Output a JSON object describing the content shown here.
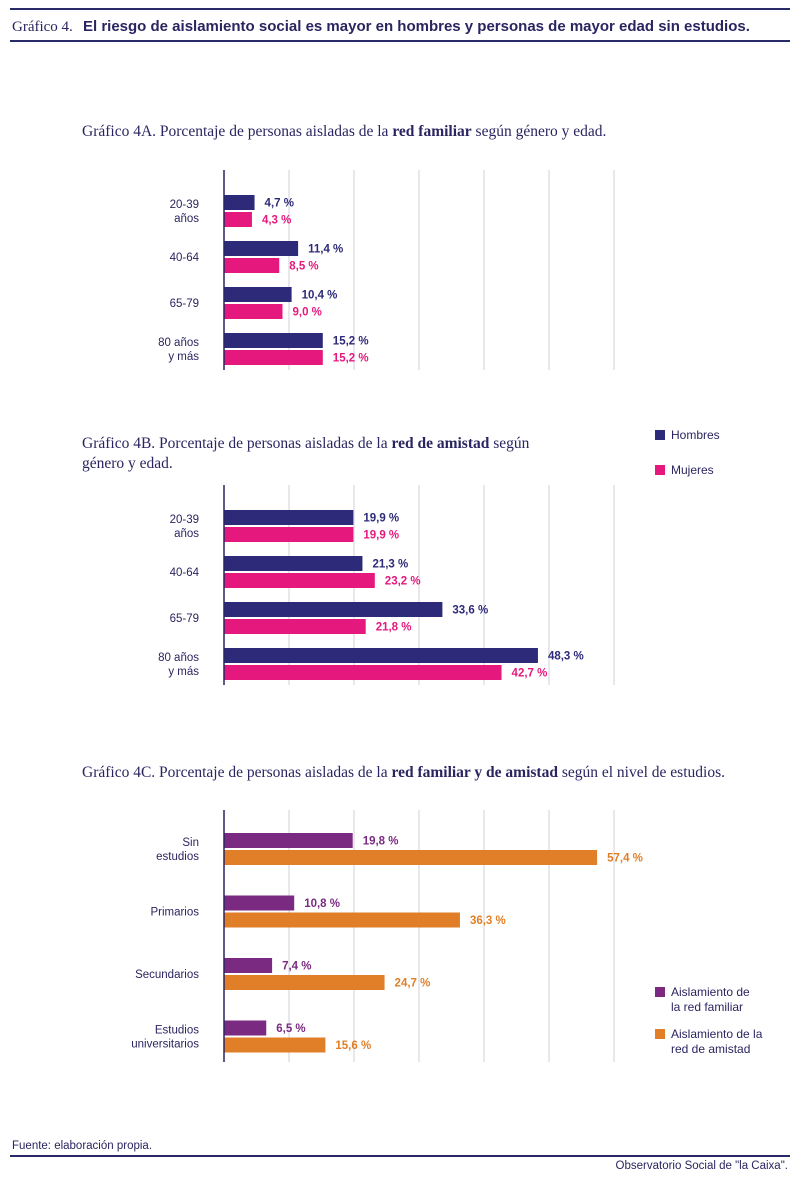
{
  "header": {
    "label": "Gráfico 4.",
    "title": "El riesgo de aislamiento social es mayor en hombres y personas de mayor edad sin estudios."
  },
  "colors": {
    "hombres": "#2e2a7a",
    "mujeres": "#e5197d",
    "familiar": "#7b2a82",
    "amistad": "#e07f28",
    "grid": "#cfcfd8",
    "axis": "#2a2560",
    "rule": "#2a2a6a"
  },
  "chartA": {
    "title_prefix": "Gráfico 4A. Porcentaje de personas aisladas de la ",
    "title_bold": "red familiar",
    "title_suffix": " según género y edad."
  },
  "chartB": {
    "title_prefix": "Gráfico 4B. Porcentaje de personas aisladas de la ",
    "title_bold": "red de amistad",
    "title_suffix": " según género y edad."
  },
  "chartC": {
    "title_prefix": "Gráfico 4C. Porcentaje de personas aisladas de la ",
    "title_bold": "red familiar y de amistad",
    "title_suffix": " según el nivel de estudios."
  },
  "legend_gender": {
    "hombres": "Hombres",
    "mujeres": "Mujeres"
  },
  "legend_studies": {
    "familiar_line1": "Aislamiento de",
    "familiar_line2": "la red familiar",
    "amistad_line1": "Aislamiento de la",
    "amistad_line2": "red de amistad"
  },
  "chart_data": [
    {
      "id": "4A",
      "type": "bar",
      "orientation": "horizontal",
      "title": "Gráfico 4A. Porcentaje de personas aisladas de la red familiar según género y edad.",
      "categories": [
        [
          "20-39",
          "años"
        ],
        [
          "40-64"
        ],
        [
          "65-79"
        ],
        [
          "80 años",
          "y más"
        ]
      ],
      "series": [
        {
          "name": "Hombres",
          "values": [
            4.7,
            11.4,
            10.4,
            15.2
          ],
          "labels": [
            "4,7 %",
            "11,4 %",
            "10,4 %",
            "15,2 %"
          ]
        },
        {
          "name": "Mujeres",
          "values": [
            4.3,
            8.5,
            9.0,
            15.2
          ],
          "labels": [
            "4,3 %",
            "8,5 %",
            "9,0 %",
            "15,2 %"
          ]
        }
      ],
      "xlim": [
        0,
        60
      ],
      "grid": true
    },
    {
      "id": "4B",
      "type": "bar",
      "orientation": "horizontal",
      "title": "Gráfico 4B. Porcentaje de personas aisladas de la red de amistad según género y edad.",
      "categories": [
        [
          "20-39",
          "años"
        ],
        [
          "40-64"
        ],
        [
          "65-79"
        ],
        [
          "80 años",
          "y más"
        ]
      ],
      "series": [
        {
          "name": "Hombres",
          "values": [
            19.9,
            21.3,
            33.6,
            48.3
          ],
          "labels": [
            "19,9 %",
            "21,3 %",
            "33,6 %",
            "48,3 %"
          ]
        },
        {
          "name": "Mujeres",
          "values": [
            19.9,
            23.2,
            21.8,
            42.7
          ],
          "labels": [
            "19,9 %",
            "23,2 %",
            "21,8 %",
            "42,7 %"
          ]
        }
      ],
      "xlim": [
        0,
        60
      ],
      "grid": true
    },
    {
      "id": "4C",
      "type": "bar",
      "orientation": "horizontal",
      "title": "Gráfico 4C. Porcentaje de personas aisladas de la red familiar y de amistad según el nivel de estudios.",
      "categories": [
        [
          "Sin",
          "estudios"
        ],
        [
          "Primarios"
        ],
        [
          "Secundarios"
        ],
        [
          "Estudios",
          "universitarios"
        ]
      ],
      "series": [
        {
          "name": "Aislamiento de la red familiar",
          "values": [
            19.8,
            10.8,
            7.4,
            6.5
          ],
          "labels": [
            "19,8 %",
            "10,8 %",
            "7,4 %",
            "6,5 %"
          ]
        },
        {
          "name": "Aislamiento de la red de amistad",
          "values": [
            57.4,
            36.3,
            24.7,
            15.6
          ],
          "labels": [
            "57,4 %",
            "36,3 %",
            "24,7 %",
            "15,6 %"
          ]
        }
      ],
      "xlim": [
        0,
        60
      ],
      "grid": true
    }
  ],
  "source": "Fuente: elaboración propia.",
  "footer": "Observatorio Social de \"la Caixa\"."
}
